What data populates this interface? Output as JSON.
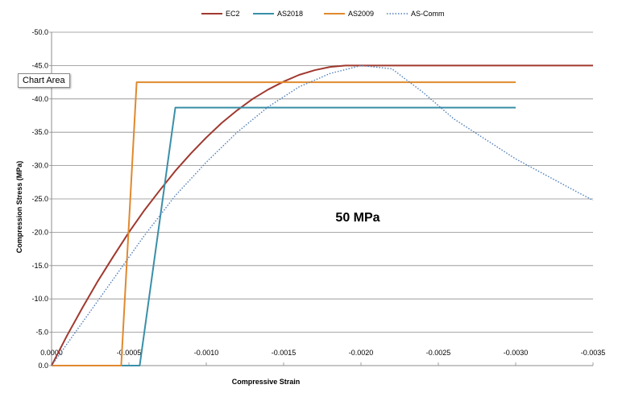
{
  "chart_data": {
    "type": "line",
    "title": "",
    "xlabel": "Compressive Strain",
    "ylabel": "Compression Stress (MPa)",
    "xlim": [
      0,
      -0.0035
    ],
    "ylim": [
      0,
      -50
    ],
    "x_ticks": [
      "0.0000",
      "-0.0005",
      "-0.0010",
      "-0.0015",
      "-0.0020",
      "-0.0025",
      "-0.0030",
      "-0.0035"
    ],
    "y_ticks": [
      "0.0",
      "-5.0",
      "-10.0",
      "-15.0",
      "-20.0",
      "-25.0",
      "-30.0",
      "-35.0",
      "-40.0",
      "-45.0",
      "-50.0"
    ],
    "grid": "horizontal",
    "legend_position": "top",
    "annotation": "50 MPa",
    "tooltip": "Chart Area",
    "series": [
      {
        "name": "EC2",
        "color": "#A0392F",
        "style": "solid",
        "x": [
          0,
          -0.0001,
          -0.0002,
          -0.0003,
          -0.0004,
          -0.0005,
          -0.0006,
          -0.0007,
          -0.0008,
          -0.0009,
          -0.001,
          -0.0011,
          -0.0012,
          -0.0013,
          -0.0014,
          -0.0015,
          -0.0016,
          -0.0017,
          -0.0018,
          -0.0019,
          -0.002,
          -0.0021,
          -0.0025,
          -0.003,
          -0.0035
        ],
        "y": [
          0,
          -4.5,
          -8.7,
          -12.7,
          -16.4,
          -20.0,
          -23.3,
          -26.3,
          -29.2,
          -31.8,
          -34.2,
          -36.4,
          -38.3,
          -40.0,
          -41.4,
          -42.6,
          -43.6,
          -44.3,
          -44.8,
          -45.0,
          -45.0,
          -45.0,
          -45.0,
          -45.0,
          -45.0
        ]
      },
      {
        "name": "AS2018",
        "color": "#3A8FA8",
        "style": "solid",
        "x": [
          0,
          -0.00057,
          -0.00057,
          -0.0008,
          -0.003
        ],
        "y": [
          0,
          0,
          0,
          -38.7,
          -38.7
        ]
      },
      {
        "name": "AS2009",
        "color": "#E0892E",
        "style": "solid",
        "x": [
          0,
          -0.00045,
          -0.00045,
          -0.00055,
          -0.003
        ],
        "y": [
          0,
          0,
          0,
          -42.5,
          -42.5
        ]
      },
      {
        "name": "AS-Comm",
        "color": "#4F7FB8",
        "style": "dotted",
        "x": [
          0,
          -0.0002,
          -0.0004,
          -0.0006,
          -0.0008,
          -0.001,
          -0.0012,
          -0.0014,
          -0.0016,
          -0.0018,
          -0.002,
          -0.0022,
          -0.0024,
          -0.0026,
          -0.0028,
          -0.003,
          -0.0032,
          -0.0034,
          -0.0035
        ],
        "y": [
          0,
          -6.5,
          -13.0,
          -19.5,
          -25.5,
          -30.5,
          -35.0,
          -38.8,
          -41.8,
          -43.8,
          -45.0,
          -44.5,
          -41.0,
          -37.0,
          -34.0,
          -31.0,
          -28.5,
          -26.0,
          -24.8
        ]
      }
    ]
  }
}
